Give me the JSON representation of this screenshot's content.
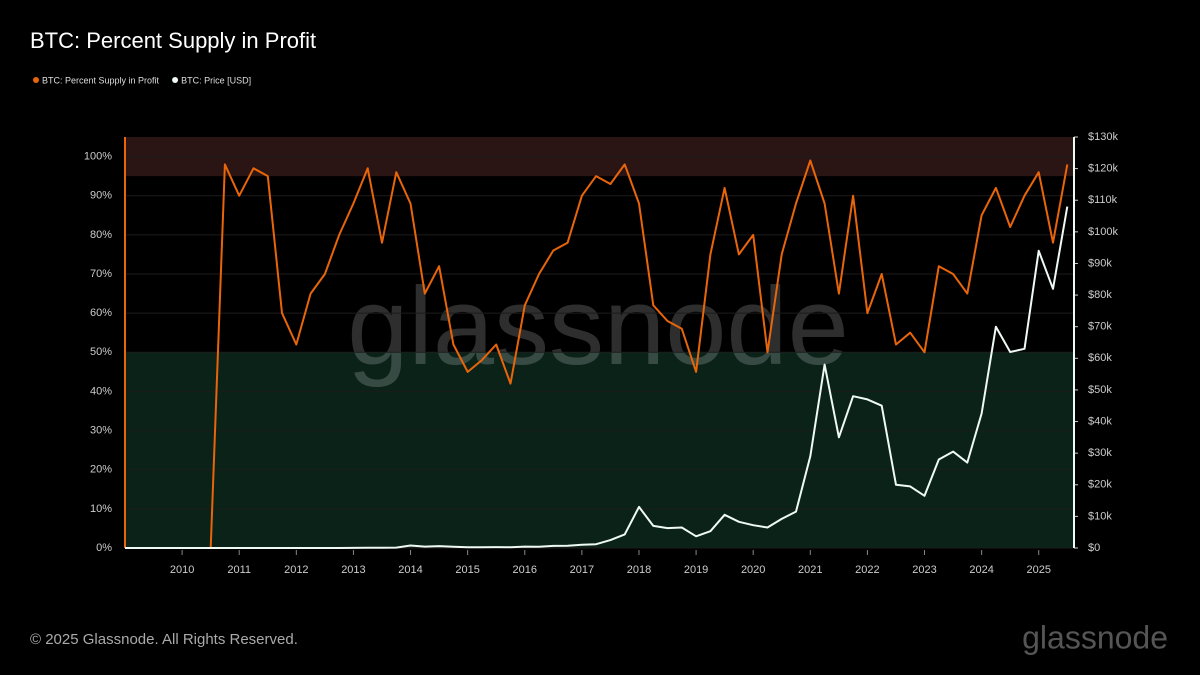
{
  "chart_data": {
    "type": "line",
    "title": "BTC: Percent Supply in Profit",
    "watermark": "glassnode",
    "footer": "© 2025 Glassnode. All Rights Reserved.",
    "logo": "glassnode",
    "x": [
      2009.0,
      2009.25,
      2009.5,
      2009.75,
      2010.0,
      2010.25,
      2010.5,
      2010.75,
      2011.0,
      2011.25,
      2011.5,
      2011.75,
      2012.0,
      2012.25,
      2012.5,
      2012.75,
      2013.0,
      2013.25,
      2013.5,
      2013.75,
      2014.0,
      2014.25,
      2014.5,
      2014.75,
      2015.0,
      2015.25,
      2015.5,
      2015.75,
      2016.0,
      2016.25,
      2016.5,
      2016.75,
      2017.0,
      2017.25,
      2017.5,
      2017.75,
      2018.0,
      2018.25,
      2018.5,
      2018.75,
      2019.0,
      2019.25,
      2019.5,
      2019.75,
      2020.0,
      2020.25,
      2020.5,
      2020.75,
      2021.0,
      2021.25,
      2021.5,
      2021.75,
      2022.0,
      2022.25,
      2022.5,
      2022.75,
      2023.0,
      2023.25,
      2023.5,
      2023.75,
      2024.0,
      2024.25,
      2024.5,
      2024.75,
      2025.0,
      2025.25,
      2025.5
    ],
    "series": [
      {
        "name": "BTC: Percent Supply in Profit",
        "color": "#e8650a",
        "axis": "y",
        "values": [
          0,
          0,
          0,
          0,
          0,
          0,
          0,
          98,
          90,
          97,
          95,
          60,
          52,
          65,
          70,
          80,
          88,
          97,
          78,
          96,
          88,
          65,
          72,
          52,
          45,
          48,
          52,
          42,
          62,
          70,
          76,
          78,
          90,
          95,
          93,
          98,
          88,
          62,
          58,
          56,
          45,
          75,
          92,
          75,
          80,
          50,
          75,
          88,
          99,
          88,
          65,
          90,
          60,
          70,
          52,
          55,
          50,
          72,
          70,
          65,
          85,
          92,
          82,
          90,
          96,
          78,
          98
        ]
      },
      {
        "name": "BTC: Price [USD]",
        "color": "#eefaf3",
        "axis": "y2",
        "values": [
          0,
          0,
          0,
          0,
          0,
          0,
          0,
          0.1,
          0.3,
          0.8,
          15,
          5,
          6,
          5,
          9,
          12,
          20,
          100,
          90,
          140,
          800,
          450,
          600,
          380,
          220,
          240,
          280,
          250,
          430,
          420,
          650,
          700,
          1000,
          1200,
          2500,
          4300,
          13000,
          7000,
          6300,
          6500,
          3700,
          5300,
          10500,
          8300,
          7200,
          6500,
          9200,
          11500,
          29000,
          58000,
          35000,
          48000,
          47000,
          45000,
          20000,
          19500,
          16500,
          28000,
          30500,
          27000,
          42500,
          70000,
          62000,
          63000,
          94000,
          82000,
          108000
        ]
      }
    ],
    "xlim": [
      2009.0,
      2025.6
    ],
    "xticks": [
      2010,
      2011,
      2012,
      2013,
      2014,
      2015,
      2016,
      2017,
      2018,
      2019,
      2020,
      2021,
      2022,
      2023,
      2024,
      2025
    ],
    "ylim": [
      0,
      105
    ],
    "yticks": [
      {
        "value": 0,
        "label": "0%"
      },
      {
        "value": 10,
        "label": "10%"
      },
      {
        "value": 20,
        "label": "20%"
      },
      {
        "value": 30,
        "label": "30%"
      },
      {
        "value": 40,
        "label": "40%"
      },
      {
        "value": 50,
        "label": "50%"
      },
      {
        "value": 60,
        "label": "60%"
      },
      {
        "value": 70,
        "label": "70%"
      },
      {
        "value": 80,
        "label": "80%"
      },
      {
        "value": 90,
        "label": "90%"
      },
      {
        "value": 100,
        "label": "100%"
      }
    ],
    "y2lim": [
      0,
      130000
    ],
    "y2ticks": [
      {
        "value": 0,
        "label": "$0"
      },
      {
        "value": 10000,
        "label": "$10k"
      },
      {
        "value": 20000,
        "label": "$20k"
      },
      {
        "value": 30000,
        "label": "$30k"
      },
      {
        "value": 40000,
        "label": "$40k"
      },
      {
        "value": 50000,
        "label": "$50k"
      },
      {
        "value": 60000,
        "label": "$60k"
      },
      {
        "value": 70000,
        "label": "$70k"
      },
      {
        "value": 80000,
        "label": "$80k"
      },
      {
        "value": 90000,
        "label": "$90k"
      },
      {
        "value": 100000,
        "label": "$100k"
      },
      {
        "value": 110000,
        "label": "$110k"
      },
      {
        "value": 120000,
        "label": "$120k"
      },
      {
        "value": 130000,
        "label": "$130k"
      }
    ],
    "bands": [
      {
        "from": 95,
        "to": 105,
        "color": "#2a1414"
      },
      {
        "from": 0,
        "to": 50,
        "color": "#0b2219"
      }
    ],
    "grid": true,
    "legend": "top-left"
  }
}
